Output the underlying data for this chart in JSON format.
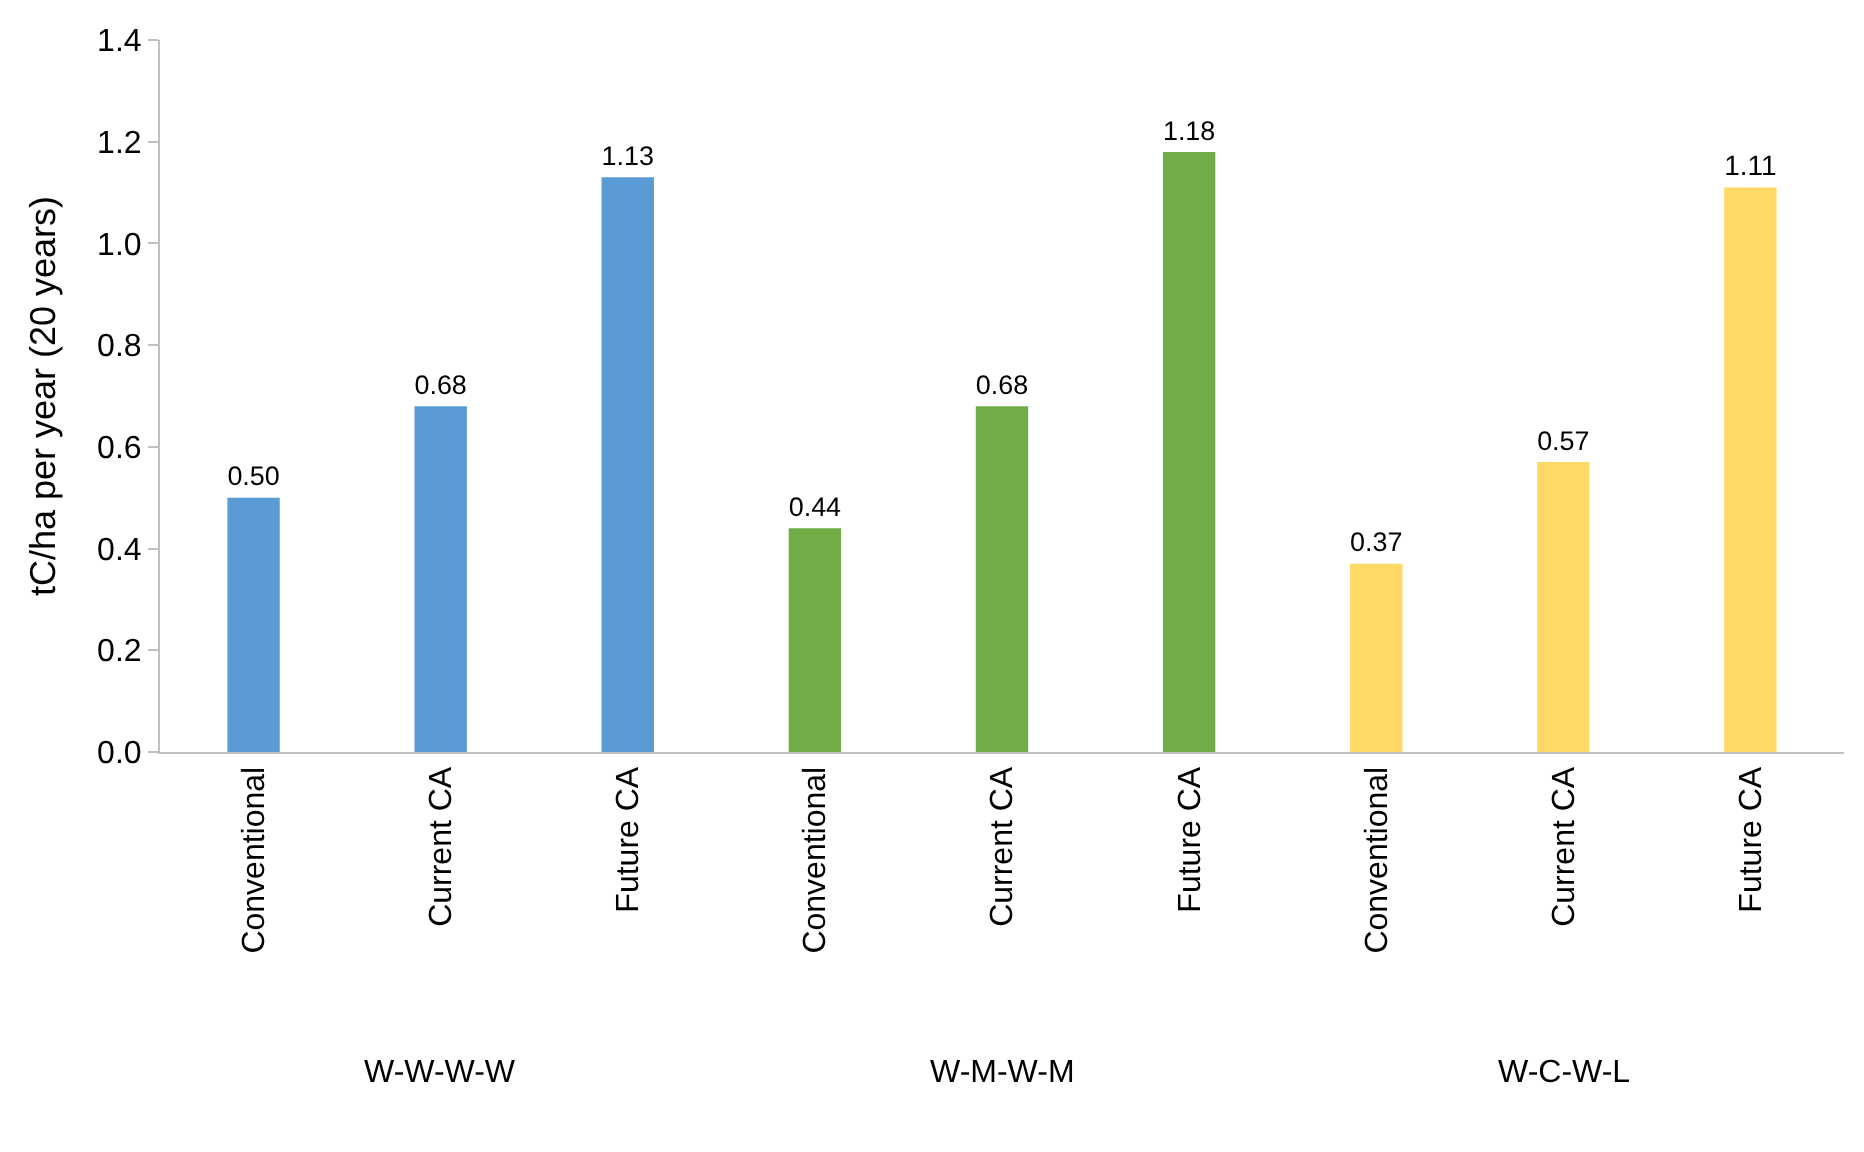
{
  "chart_data": {
    "type": "bar",
    "ylabel": "tC/ha per year (20 years)",
    "categories": [
      "Conventional",
      "Current CA",
      "Future CA",
      "Conventional",
      "Current CA",
      "Future CA",
      "Conventional",
      "Current CA",
      "Future CA"
    ],
    "values": [
      0.5,
      0.68,
      1.13,
      0.44,
      0.68,
      1.18,
      0.37,
      0.57,
      1.11
    ],
    "value_labels": [
      "0.50",
      "0.68",
      "1.13",
      "0.44",
      "0.68",
      "1.18",
      "0.37",
      "0.57",
      "1.11"
    ],
    "colors": [
      "#5b9bd5",
      "#5b9bd5",
      "#5b9bd5",
      "#70ad47",
      "#70ad47",
      "#70ad47",
      "#ffd966",
      "#ffd966",
      "#ffd966"
    ],
    "ylim": [
      0,
      1.4
    ],
    "yticks": [
      {
        "value": 0,
        "label": "0.0"
      },
      {
        "value": 0.2,
        "label": "0.2"
      },
      {
        "value": 0.4,
        "label": "0.4"
      },
      {
        "value": 0.6,
        "label": "0.6"
      },
      {
        "value": 0.8,
        "label": "0.8"
      },
      {
        "value": 1.0,
        "label": "1.0"
      },
      {
        "value": 1.2,
        "label": "1.2"
      },
      {
        "value": 1.4,
        "label": "1.4"
      }
    ],
    "annotations": [
      "W-W-W-W",
      "W-M-W-M",
      "W-C-W-L"
    ]
  }
}
